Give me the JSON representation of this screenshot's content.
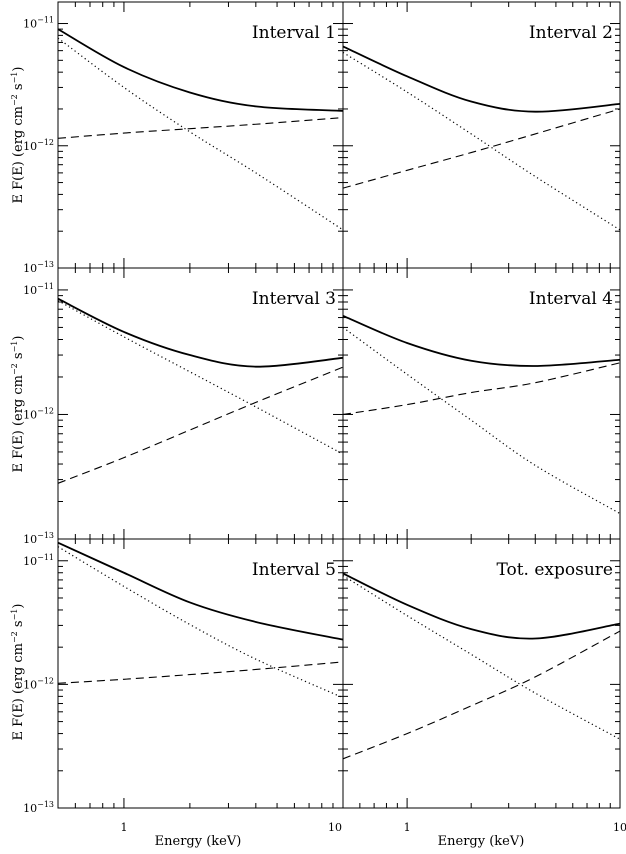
{
  "labels": {
    "ylabel_prefix": "E F(E)  (erg cm",
    "ylabel_exp1": "−2",
    "ylabel_mid": " s",
    "ylabel_exp2": "−1",
    "ylabel_suffix": ")",
    "xlabel": "Energy (keV)"
  },
  "axes": {
    "x_scale": "log",
    "y_scale": "log",
    "xlim": [
      0.5,
      10
    ],
    "ylim": [
      1e-13,
      1.5e-11
    ],
    "x_tick_labels": [
      {
        "value": 1,
        "label": "1"
      },
      {
        "value": 10,
        "label": "10"
      }
    ],
    "y_tick_labels": [
      {
        "value": 1e-11,
        "base": "10",
        "exp": "−11"
      },
      {
        "value": 1e-12,
        "base": "10",
        "exp": "−12"
      },
      {
        "value": 1e-13,
        "base": "10",
        "exp": "−13"
      }
    ]
  },
  "chart_data": [
    {
      "type": "line",
      "title": "Interval 1",
      "x": [
        0.5,
        1,
        2,
        4,
        10
      ],
      "series": [
        {
          "style": "solid",
          "values": [
            9e-12,
            4.4e-12,
            2.73e-12,
            2.1e-12,
            1.93e-12
          ]
        },
        {
          "style": "dotted",
          "values": [
            7.6e-12,
            3e-12,
            1.3e-12,
            6e-13,
            2.05e-13
          ]
        },
        {
          "style": "dashed",
          "values": [
            1.15e-12,
            1.27e-12,
            1.38e-12,
            1.5e-12,
            1.7e-12
          ]
        }
      ]
    },
    {
      "type": "line",
      "title": "Interval 2",
      "x": [
        0.5,
        1,
        2,
        4,
        10
      ],
      "series": [
        {
          "style": "solid",
          "values": [
            6.5e-12,
            3.7e-12,
            2.3e-12,
            1.9e-12,
            2.2e-12
          ]
        },
        {
          "style": "dotted",
          "values": [
            5.8e-12,
            2.75e-12,
            1.25e-12,
            5.6e-13,
            2.05e-13
          ]
        },
        {
          "style": "dashed",
          "values": [
            4.5e-13,
            6.3e-13,
            8.8e-13,
            1.25e-12,
            2e-12
          ]
        }
      ]
    },
    {
      "type": "line",
      "title": "Interval 3",
      "x": [
        0.5,
        1,
        2,
        4,
        10
      ],
      "series": [
        {
          "style": "solid",
          "values": [
            8.5e-12,
            4.6e-12,
            3e-12,
            2.42e-12,
            2.85e-12
          ]
        },
        {
          "style": "dotted",
          "values": [
            8.2e-12,
            4.2e-12,
            2.2e-12,
            1.15e-12,
            4.8e-13
          ]
        },
        {
          "style": "dashed",
          "values": [
            2.8e-13,
            4.5e-13,
            7.5e-13,
            1.25e-12,
            2.4e-12
          ]
        }
      ]
    },
    {
      "type": "line",
      "title": "Interval 4",
      "x": [
        0.5,
        1,
        2,
        4,
        10
      ],
      "series": [
        {
          "style": "solid",
          "values": [
            6.2e-12,
            3.75e-12,
            2.7e-12,
            2.45e-12,
            2.75e-12
          ]
        },
        {
          "style": "dotted",
          "values": [
            5e-12,
            2.1e-12,
            9e-13,
            3.9e-13,
            1.6e-13
          ]
        },
        {
          "style": "dashed",
          "values": [
            1e-12,
            1.2e-12,
            1.5e-12,
            1.8e-12,
            2.6e-12
          ]
        }
      ]
    },
    {
      "type": "line",
      "title": "Interval 5",
      "x": [
        0.5,
        1,
        2,
        4,
        10
      ],
      "series": [
        {
          "style": "solid",
          "values": [
            1.4e-11,
            8e-12,
            4.6e-12,
            3.2e-12,
            2.3e-12
          ]
        },
        {
          "style": "dotted",
          "values": [
            1.3e-11,
            6.2e-12,
            3.05e-12,
            1.6e-12,
            7.8e-13
          ]
        },
        {
          "style": "dashed",
          "values": [
            1.02e-12,
            1.1e-12,
            1.2e-12,
            1.32e-12,
            1.52e-12
          ]
        }
      ]
    },
    {
      "type": "line",
      "title": "Tot. exposure",
      "x": [
        0.5,
        1,
        2,
        4,
        10
      ],
      "series": [
        {
          "style": "solid",
          "values": [
            7.9e-12,
            4.4e-12,
            2.8e-12,
            2.35e-12,
            3.1e-12
          ]
        },
        {
          "style": "dotted",
          "values": [
            7.6e-12,
            3.6e-12,
            1.75e-12,
            8.5e-13,
            3.6e-13
          ]
        },
        {
          "style": "dashed",
          "values": [
            2.5e-13,
            4e-13,
            6.7e-13,
            1.15e-12,
            2.7e-12
          ]
        }
      ]
    }
  ]
}
